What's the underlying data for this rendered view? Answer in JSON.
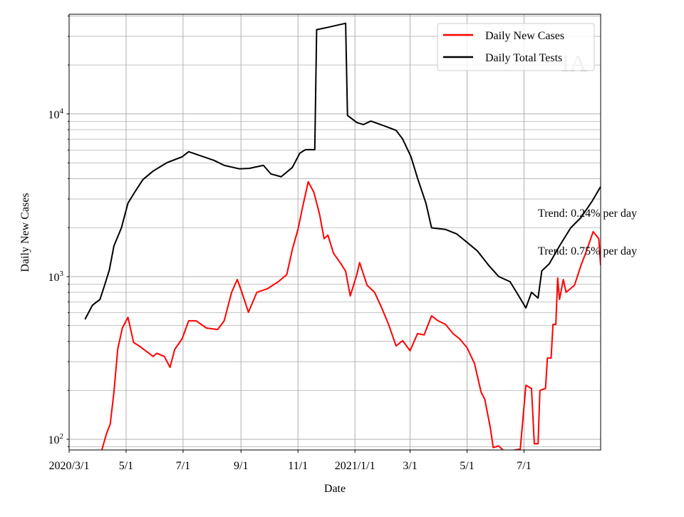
{
  "chart_data": {
    "type": "line",
    "xlabel": "Date",
    "ylabel": "Daily New Cases",
    "yscale": "log",
    "ylim": [
      86,
      41000
    ],
    "x_units": "days since 2020-03-01",
    "xlim": [
      0,
      569
    ],
    "grid": true,
    "legend_placement": "top-right",
    "x_ticks": [
      {
        "value": 0,
        "label": "2020/3/1"
      },
      {
        "value": 61,
        "label": "5/1"
      },
      {
        "value": 122,
        "label": "7/1"
      },
      {
        "value": 184,
        "label": "9/1"
      },
      {
        "value": 245,
        "label": "11/1"
      },
      {
        "value": 306,
        "label": "2021/1/1"
      },
      {
        "value": 365,
        "label": "3/1"
      },
      {
        "value": 426,
        "label": "5/1"
      },
      {
        "value": 487,
        "label": "7/1"
      }
    ],
    "y_ticks": [
      {
        "value": 100,
        "base": "10",
        "exp": "2"
      },
      {
        "value": 1000,
        "base": "10",
        "exp": "3"
      },
      {
        "value": 10000,
        "base": "10",
        "exp": "4"
      }
    ],
    "series": [
      {
        "name": "Daily New Cases",
        "color": "#ff0000",
        "points": [
          [
            35,
            86
          ],
          [
            40,
            108
          ],
          [
            44,
            124
          ],
          [
            48,
            195
          ],
          [
            52,
            357
          ],
          [
            57,
            483
          ],
          [
            63,
            562
          ],
          [
            69,
            394
          ],
          [
            75,
            375
          ],
          [
            82,
            350
          ],
          [
            90,
            323
          ],
          [
            94,
            338
          ],
          [
            102,
            323
          ],
          [
            108,
            277
          ],
          [
            113,
            357
          ],
          [
            121,
            415
          ],
          [
            128,
            535
          ],
          [
            136,
            535
          ],
          [
            147,
            483
          ],
          [
            159,
            473
          ],
          [
            166,
            535
          ],
          [
            174,
            801
          ],
          [
            180,
            960
          ],
          [
            185,
            801
          ],
          [
            192,
            604
          ],
          [
            201,
            801
          ],
          [
            212,
            841
          ],
          [
            224,
            931
          ],
          [
            233,
            1030
          ],
          [
            239,
            1469
          ],
          [
            245,
            1950
          ],
          [
            250,
            2690
          ],
          [
            256,
            3830
          ],
          [
            262,
            3300
          ],
          [
            268,
            2430
          ],
          [
            273,
            1710
          ],
          [
            277,
            1800
          ],
          [
            283,
            1395
          ],
          [
            291,
            1200
          ],
          [
            296,
            1080
          ],
          [
            301,
            762
          ],
          [
            308,
            1030
          ],
          [
            311,
            1220
          ],
          [
            319,
            885
          ],
          [
            327,
            801
          ],
          [
            334,
            655
          ],
          [
            342,
            508
          ],
          [
            350,
            375
          ],
          [
            357,
            404
          ],
          [
            365,
            350
          ],
          [
            373,
            446
          ],
          [
            380,
            438
          ],
          [
            388,
            574
          ],
          [
            395,
            535
          ],
          [
            403,
            508
          ],
          [
            411,
            446
          ],
          [
            418,
            415
          ],
          [
            426,
            366
          ],
          [
            434,
            292
          ],
          [
            441,
            195
          ],
          [
            445,
            176
          ],
          [
            451,
            117
          ],
          [
            454,
            89
          ],
          [
            460,
            91
          ],
          [
            466,
            84
          ],
          [
            483,
            87
          ],
          [
            489,
            215
          ],
          [
            495,
            205
          ],
          [
            498,
            94
          ],
          [
            502,
            94
          ],
          [
            504,
            200
          ],
          [
            510,
            205
          ],
          [
            512,
            316
          ],
          [
            516,
            316
          ],
          [
            518,
            508
          ],
          [
            521,
            508
          ],
          [
            523,
            980
          ],
          [
            525,
            724
          ],
          [
            529,
            960
          ],
          [
            532,
            801
          ],
          [
            541,
            885
          ],
          [
            548,
            1175
          ],
          [
            553,
            1395
          ],
          [
            561,
            1890
          ],
          [
            567,
            1710
          ],
          [
            569,
            1175
          ]
        ]
      },
      {
        "name": "Daily Total Tests",
        "color": "#000000",
        "points": [
          [
            17,
            546
          ],
          [
            25,
            668
          ],
          [
            33,
            724
          ],
          [
            38,
            885
          ],
          [
            43,
            1096
          ],
          [
            48,
            1544
          ],
          [
            56,
            1995
          ],
          [
            63,
            2830
          ],
          [
            71,
            3360
          ],
          [
            79,
            3950
          ],
          [
            90,
            4460
          ],
          [
            105,
            5030
          ],
          [
            121,
            5450
          ],
          [
            128,
            5860
          ],
          [
            144,
            5450
          ],
          [
            155,
            5190
          ],
          [
            166,
            4830
          ],
          [
            182,
            4600
          ],
          [
            193,
            4630
          ],
          [
            208,
            4830
          ],
          [
            216,
            4280
          ],
          [
            227,
            4110
          ],
          [
            239,
            4690
          ],
          [
            247,
            5740
          ],
          [
            253,
            6030
          ],
          [
            263,
            6030
          ],
          [
            265,
            32960
          ],
          [
            277,
            34100
          ],
          [
            296,
            36060
          ],
          [
            298,
            9800
          ],
          [
            308,
            8860
          ],
          [
            315,
            8600
          ],
          [
            323,
            9040
          ],
          [
            338,
            8420
          ],
          [
            350,
            7930
          ],
          [
            357,
            7020
          ],
          [
            366,
            5450
          ],
          [
            373,
            4030
          ],
          [
            382,
            2830
          ],
          [
            388,
            1995
          ],
          [
            403,
            1950
          ],
          [
            415,
            1830
          ],
          [
            426,
            1625
          ],
          [
            437,
            1440
          ],
          [
            449,
            1175
          ],
          [
            460,
            1000
          ],
          [
            472,
            931
          ],
          [
            479,
            801
          ],
          [
            489,
            642
          ],
          [
            495,
            801
          ],
          [
            502,
            738
          ],
          [
            506,
            1084
          ],
          [
            514,
            1200
          ],
          [
            525,
            1544
          ],
          [
            537,
            1995
          ],
          [
            548,
            2310
          ],
          [
            560,
            2917
          ],
          [
            569,
            3570
          ]
        ]
      }
    ],
    "annotations": [
      "Trend: 0.24% per day",
      "Trend: 0.75% per day"
    ],
    "watermark": "IA"
  }
}
